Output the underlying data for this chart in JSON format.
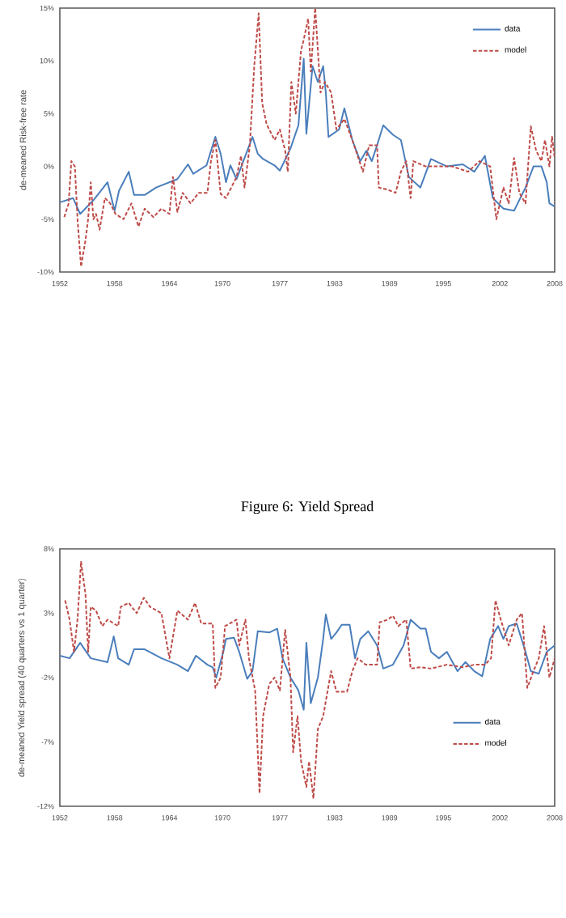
{
  "chart_data": [
    {
      "type": "line",
      "ylabel": "de-meaned Risk-free rate",
      "xlim": [
        1952,
        2008
      ],
      "xticks": [
        {
          "value": 1952,
          "label": "1952"
        },
        {
          "value": 1958.2,
          "label": "1958"
        },
        {
          "value": 1964.4,
          "label": "1964"
        },
        {
          "value": 1970.4,
          "label": "1970"
        },
        {
          "value": 1976.9,
          "label": "1977"
        },
        {
          "value": 1983.1,
          "label": "1983"
        },
        {
          "value": 1989.3,
          "label": "1989"
        },
        {
          "value": 1995.4,
          "label": "1995"
        },
        {
          "value": 2001.8,
          "label": "2002"
        },
        {
          "value": 2008,
          "label": "2008"
        }
      ],
      "ylim": [
        -10,
        15
      ],
      "yticks": [
        {
          "value": -10,
          "label": "-10%"
        },
        {
          "value": -5,
          "label": "-5%"
        },
        {
          "value": 0,
          "label": "0%"
        },
        {
          "value": 5,
          "label": "5%"
        },
        {
          "value": 10,
          "label": "10%"
        },
        {
          "value": 15,
          "label": "15%"
        }
      ],
      "legend": "top right",
      "series": [
        {
          "name": "data",
          "color": "#4a7ebb",
          "line_style": "solid",
          "x": [
            1952.0,
            1953.5,
            1954.3,
            1955.8,
            1957.4,
            1958.2,
            1958.7,
            1959.8,
            1960.4,
            1961.6,
            1962.9,
            1965.3,
            1966.5,
            1967.1,
            1968.6,
            1969.6,
            1970.2,
            1970.8,
            1971.3,
            1972.0,
            1973.8,
            1974.4,
            1975.0,
            1976.3,
            1976.9,
            1978.1,
            1979.0,
            1979.6,
            1979.9,
            1980.6,
            1981.2,
            1981.8,
            1982.1,
            1982.4,
            1983.6,
            1984.2,
            1985.1,
            1986.0,
            1986.7,
            1987.3,
            1987.9,
            1988.6,
            1989.7,
            1990.6,
            1991.5,
            1992.8,
            1994.0,
            1995.8,
            1997.6,
            1998.9,
            2000.1,
            2001.0,
            2002.2,
            2003.4,
            2004.7,
            2005.6,
            2006.5,
            2007.1,
            2007.4,
            2008.0
          ],
          "values": [
            -3.4,
            -3,
            -4.5,
            -3.2,
            -1.5,
            -4.2,
            -2.3,
            -0.5,
            -2.7,
            -2.7,
            -2,
            -1.2,
            0.2,
            -0.7,
            0.1,
            2.8,
            1.2,
            -1.5,
            0.1,
            -1.2,
            2.8,
            1.2,
            0.7,
            0.1,
            -0.4,
            1.7,
            3.9,
            10.2,
            3.1,
            9.5,
            8,
            9.5,
            7,
            2.8,
            3.5,
            5.5,
            2.5,
            0.5,
            1.5,
            0.5,
            2,
            3.9,
            3,
            2.5,
            -1,
            -2,
            0.7,
            0,
            0.2,
            -0.5,
            1,
            -3,
            -4,
            -4.2,
            -2,
            0,
            0,
            -1.5,
            -3.5,
            -3.8
          ]
        },
        {
          "name": "model",
          "color": "#be4b48",
          "line_style": "dashed",
          "x": [
            1952.5,
            1953.0,
            1953.3,
            1953.7,
            1954.0,
            1954.4,
            1954.9,
            1955.2,
            1955.5,
            1955.8,
            1956.1,
            1956.5,
            1957.1,
            1957.7,
            1958.3,
            1959.2,
            1960.1,
            1960.9,
            1961.6,
            1962.6,
            1963.5,
            1964.4,
            1964.8,
            1965.3,
            1965.9,
            1966.8,
            1967.7,
            1968.7,
            1969.1,
            1969.6,
            1970.2,
            1970.8,
            1972.0,
            1972.5,
            1972.9,
            1973.5,
            1974.0,
            1974.5,
            1974.9,
            1975.4,
            1976.3,
            1976.9,
            1977.5,
            1977.8,
            1978.2,
            1978.7,
            1979.3,
            1979.6,
            1980.1,
            1980.4,
            1980.9,
            1981.5,
            1982.0,
            1982.7,
            1983.3,
            1984.2,
            1985.1,
            1985.7,
            1986.3,
            1987.0,
            1987.9,
            1988.1,
            1989.1,
            1990.0,
            1990.6,
            1991.2,
            1991.7,
            1992.0,
            1993.4,
            1994.6,
            1996.4,
            1998.2,
            1999.5,
            2000.7,
            2001.4,
            2002.2,
            2002.8,
            2003.4,
            2004.0,
            2004.7,
            2005.3,
            2005.9,
            2006.5,
            2006.9,
            2007.4,
            2007.7,
            2008.0
          ],
          "values": [
            -4.8,
            -3.5,
            0.5,
            0,
            -5,
            -9.5,
            -7,
            -5,
            -1.5,
            -5,
            -4.5,
            -6,
            -3,
            -3.5,
            -4.5,
            -5,
            -3.5,
            -5.7,
            -4,
            -4.8,
            -4,
            -4.5,
            -1,
            -4.3,
            -2.5,
            -3.5,
            -2.5,
            -2.5,
            0.5,
            2.5,
            -2.6,
            -3,
            -1,
            1,
            -2,
            2,
            9.5,
            14.5,
            6,
            4,
            2.5,
            3.5,
            1.5,
            -0.5,
            8,
            5,
            11,
            12,
            14,
            9,
            15,
            7,
            8,
            7,
            3.5,
            4.5,
            2.5,
            1,
            -0.5,
            2,
            2,
            -2,
            -2.2,
            -2.5,
            -0.5,
            0.5,
            -3,
            0.5,
            0,
            0,
            0,
            -0.5,
            0.5,
            0,
            -5,
            -2,
            -3.5,
            0.8,
            -2.5,
            -3.5,
            3.8,
            1.5,
            0.5,
            2.5,
            0,
            2.8,
            0.8
          ]
        }
      ]
    },
    {
      "type": "line",
      "title": "Figure 6: Yield Spread",
      "ylabel": "de-meaned Yield spread (40 quarters vs 1 quarter)",
      "xlim": [
        1952,
        2008
      ],
      "xticks": [
        {
          "value": 1952,
          "label": "1952"
        },
        {
          "value": 1958.2,
          "label": "1958"
        },
        {
          "value": 1964.4,
          "label": "1964"
        },
        {
          "value": 1970.4,
          "label": "1970"
        },
        {
          "value": 1976.9,
          "label": "1977"
        },
        {
          "value": 1983.1,
          "label": "1983"
        },
        {
          "value": 1989.3,
          "label": "1989"
        },
        {
          "value": 1995.4,
          "label": "1995"
        },
        {
          "value": 2001.8,
          "label": "2002"
        },
        {
          "value": 2008,
          "label": "2008"
        }
      ],
      "ylim": [
        -12,
        8
      ],
      "yticks": [
        {
          "value": -12,
          "label": "-12%"
        },
        {
          "value": -7,
          "label": "-7%"
        },
        {
          "value": -2,
          "label": "-2%"
        },
        {
          "value": 3,
          "label": "3%"
        },
        {
          "value": 8,
          "label": "8%"
        }
      ],
      "legend": "bottom right",
      "series": [
        {
          "name": "data",
          "color": "#4a7ebb",
          "line_style": "solid",
          "x": [
            1952.0,
            1953.1,
            1954.3,
            1955.5,
            1957.4,
            1958.1,
            1958.6,
            1959.8,
            1960.4,
            1961.6,
            1963.5,
            1965.3,
            1966.5,
            1967.4,
            1968.7,
            1969.3,
            1969.7,
            1970.5,
            1970.8,
            1971.7,
            1972.3,
            1973.2,
            1973.8,
            1974.4,
            1975.7,
            1976.6,
            1977.2,
            1978.1,
            1979.0,
            1979.6,
            1979.9,
            1980.4,
            1981.2,
            1981.8,
            1982.1,
            1982.7,
            1983.3,
            1983.9,
            1984.8,
            1985.4,
            1986.0,
            1986.9,
            1987.9,
            1988.6,
            1989.7,
            1990.9,
            1991.7,
            1992.8,
            1993.4,
            1994.0,
            1994.9,
            1995.8,
            1997.0,
            1997.9,
            1998.9,
            1999.8,
            2000.7,
            2001.6,
            2002.2,
            2002.8,
            2003.7,
            2004.7,
            2005.3,
            2006.2,
            2007.1,
            2008.0
          ],
          "values": [
            -0.3,
            -0.5,
            0.7,
            -0.5,
            -0.8,
            1.2,
            -0.5,
            -1,
            0.2,
            0.2,
            -0.5,
            -1,
            -1.5,
            -0.3,
            -1,
            -1.2,
            -2,
            0,
            1,
            1.1,
            0,
            -2.1,
            -1.5,
            1.6,
            1.5,
            1.8,
            -0.5,
            -2,
            -3,
            -4.5,
            0.7,
            -4,
            -2,
            1,
            2.9,
            1,
            1.5,
            2.1,
            2.1,
            -0.5,
            1,
            1.6,
            0.5,
            -1.3,
            -1,
            0.5,
            2.5,
            1.8,
            1.8,
            0,
            -0.5,
            0,
            -1.5,
            -0.8,
            -1.5,
            -1.9,
            1,
            2,
            1,
            2,
            2.2,
            0,
            -1.5,
            -1.7,
            0,
            0.5
          ]
        },
        {
          "name": "model",
          "color": "#be4b48",
          "line_style": "dashed",
          "x": [
            1952.6,
            1953.1,
            1953.6,
            1954.0,
            1954.4,
            1954.9,
            1955.2,
            1955.5,
            1956.1,
            1956.8,
            1957.4,
            1958.6,
            1958.9,
            1959.8,
            1960.7,
            1961.5,
            1962.2,
            1963.5,
            1964.4,
            1965.3,
            1966.5,
            1967.3,
            1968.0,
            1969.3,
            1969.6,
            1970.2,
            1970.7,
            1972.0,
            1972.3,
            1973.0,
            1973.4,
            1974.1,
            1974.6,
            1975.0,
            1975.7,
            1976.3,
            1976.9,
            1977.5,
            1978.1,
            1978.4,
            1978.9,
            1979.3,
            1979.9,
            1980.2,
            1980.7,
            1981.2,
            1981.8,
            1982.7,
            1983.3,
            1984.5,
            1985.1,
            1985.7,
            1986.6,
            1987.9,
            1988.2,
            1989.1,
            1989.7,
            1990.3,
            1991.2,
            1991.7,
            1992.8,
            1994.0,
            1995.8,
            1997.6,
            1998.9,
            2000.1,
            2000.8,
            2001.3,
            2001.9,
            2002.8,
            2003.7,
            2004.3,
            2004.9,
            2005.6,
            2006.2,
            2006.8,
            2007.4,
            2008.0
          ],
          "values": [
            4,
            2.5,
            0,
            2.5,
            7,
            4.5,
            0,
            3.5,
            3.2,
            2,
            2.5,
            2,
            3.5,
            3.8,
            3,
            4.2,
            3.5,
            3,
            -0.5,
            3.2,
            2.5,
            3.8,
            2.2,
            2.2,
            -2.8,
            -2,
            2,
            2.5,
            0.5,
            2.5,
            -0.5,
            -3,
            -11,
            -5,
            -2.5,
            -2,
            -3,
            1.7,
            -2,
            -7.8,
            -5,
            -8.5,
            -10.5,
            -8.5,
            -11.4,
            -6,
            -5,
            -1.5,
            -3.1,
            -3.1,
            -1.5,
            -0.5,
            -1,
            -1,
            2.3,
            2.5,
            2.8,
            2,
            2.5,
            -1.3,
            -1.2,
            -1.3,
            -1,
            -1.2,
            -1,
            -1,
            -0.5,
            4,
            2.5,
            0.5,
            2.5,
            3,
            -2.8,
            -1.5,
            -0.5,
            2,
            -2,
            -0.5
          ]
        }
      ]
    }
  ]
}
